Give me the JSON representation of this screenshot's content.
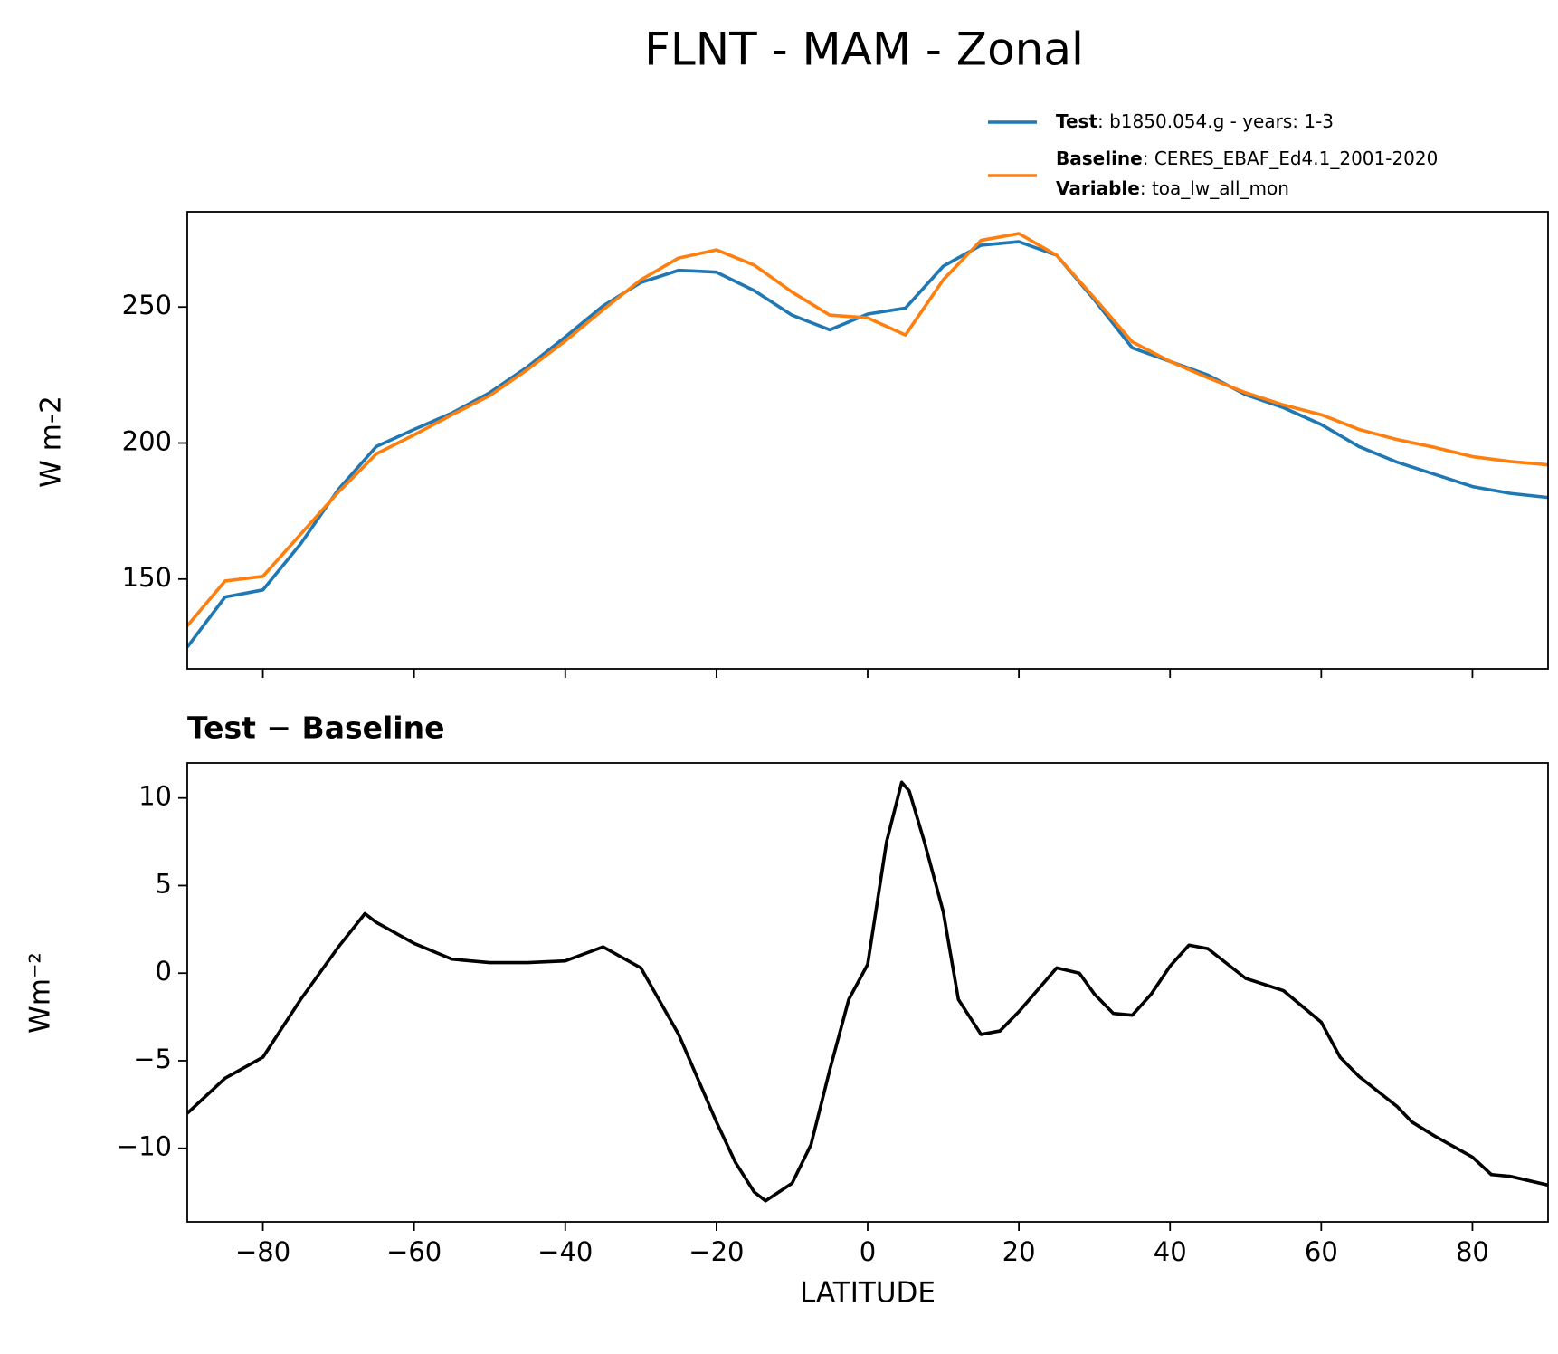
{
  "chart_data": [
    {
      "type": "line",
      "title": "FLNT - MAM - Zonal",
      "ylabel": "W m-2",
      "x": [
        -90,
        -85,
        -80,
        -75,
        -70,
        -65,
        -60,
        -55,
        -50,
        -45,
        -40,
        -35,
        -30,
        -25,
        -20,
        -15,
        -10,
        -5,
        0,
        5,
        10,
        15,
        20,
        25,
        30,
        35,
        40,
        45,
        50,
        55,
        60,
        65,
        70,
        75,
        80,
        85,
        90
      ],
      "series": [
        {
          "name": "Test",
          "detail": ": b1850.054.g - years: 1-3",
          "color": "#1f77b4",
          "values": [
            125,
            143.4,
            146,
            163,
            183,
            198.7,
            205,
            211,
            218.5,
            228,
            239,
            250.4,
            259,
            263.5,
            262.8,
            256,
            247,
            241.6,
            247.4,
            249.6,
            265,
            272.7,
            274,
            269,
            252.6,
            235,
            230,
            225,
            217.8,
            213,
            206.8,
            198.7,
            193,
            188.5,
            184,
            181.5,
            180
          ]
        },
        {
          "name": "Baseline",
          "detail": ": CERES_EBAF_Ed4.1_2001-2020",
          "color": "#ff7f0e",
          "values": [
            132.8,
            149.3,
            151,
            166.5,
            182,
            196,
            203,
            210.4,
            217.4,
            227,
            237.5,
            249,
            260,
            268,
            271,
            265.4,
            255.5,
            247,
            246,
            239.7,
            260,
            274.5,
            277,
            269,
            253.3,
            237.2,
            230,
            224,
            218.5,
            214,
            210.4,
            205,
            201.3,
            198.4,
            195,
            193.2,
            192
          ]
        }
      ],
      "legend_extra": {
        "name": "Variable",
        "detail": ": toa_lw_all_mon"
      },
      "xlim": [
        -90,
        90
      ],
      "xticks": [
        -80,
        -60,
        -40,
        -20,
        0,
        20,
        40,
        60,
        80
      ],
      "ylim": [
        117,
        285
      ],
      "yticks": [
        150,
        200,
        250
      ]
    },
    {
      "type": "line",
      "title": "Test − Baseline",
      "xlabel": "LATITUDE",
      "ylabel": "Wm⁻²",
      "x": [
        -90,
        -87.5,
        -85,
        -80,
        -75,
        -70,
        -66.5,
        -65,
        -60,
        -55,
        -50,
        -45,
        -40,
        -35,
        -30,
        -25,
        -20,
        -17.5,
        -15,
        -13.5,
        -10,
        -7.5,
        -5,
        -2.5,
        0,
        2.5,
        4.5,
        5.5,
        7.5,
        10,
        12,
        15,
        17.5,
        20,
        25,
        28,
        30,
        32.5,
        35,
        37.5,
        40,
        42.5,
        45,
        50,
        55,
        60,
        62.5,
        65,
        70,
        72,
        75,
        80,
        82.5,
        85,
        90
      ],
      "series": [
        {
          "color": "#000000",
          "values": [
            -8,
            -7,
            -6,
            -4.8,
            -1.5,
            1.5,
            3.4,
            2.9,
            1.7,
            0.8,
            0.6,
            0.6,
            0.7,
            1.5,
            0.3,
            -3.5,
            -8.5,
            -10.8,
            -12.5,
            -13,
            -12,
            -9.8,
            -5.5,
            -1.5,
            0.5,
            7.5,
            10.9,
            10.4,
            7.5,
            3.5,
            -1.5,
            -3.5,
            -3.3,
            -2.2,
            0.3,
            0,
            -1.2,
            -2.3,
            -2.4,
            -1.2,
            0.4,
            1.6,
            1.4,
            -0.3,
            -1,
            -2.8,
            -4.8,
            -5.9,
            -7.6,
            -8.5,
            -9.3,
            -10.5,
            -11.5,
            -11.6,
            -12.1
          ]
        }
      ],
      "xlim": [
        -90,
        90
      ],
      "xticks": [
        {
          "value": -80,
          "label": "−80"
        },
        {
          "value": -60,
          "label": "−60"
        },
        {
          "value": -40,
          "label": "−40"
        },
        {
          "value": -20,
          "label": "−20"
        },
        0,
        20,
        40,
        60,
        80
      ],
      "ylim": [
        -14.2,
        12
      ],
      "yticks": [
        {
          "value": -10,
          "label": "−10"
        },
        {
          "value": -5,
          "label": "−5"
        },
        0,
        5,
        10
      ]
    }
  ]
}
